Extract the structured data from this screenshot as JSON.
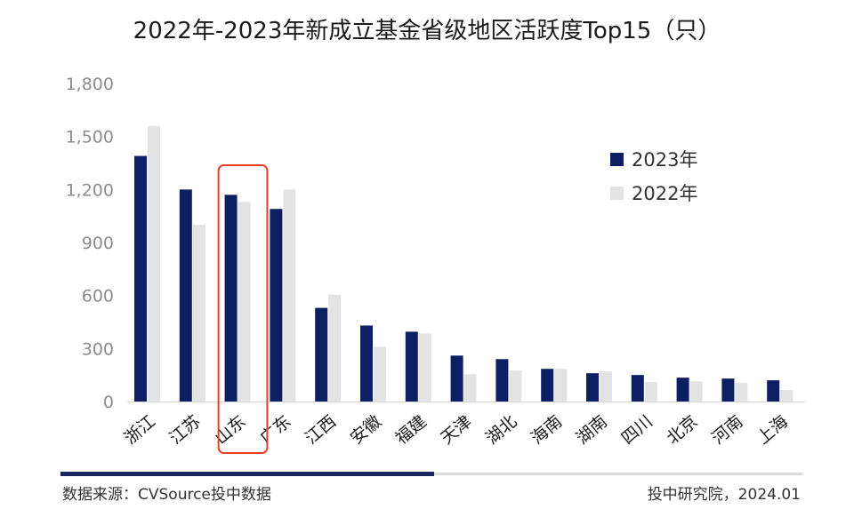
{
  "chart_data": {
    "type": "bar",
    "title": "2022年-2023年新成立基金省级地区活跃度Top15（只）",
    "categories": [
      "浙江",
      "江苏",
      "山东",
      "广东",
      "江西",
      "安徽",
      "福建",
      "天津",
      "湖北",
      "海南",
      "湖南",
      "四川",
      "北京",
      "河南",
      "上海"
    ],
    "series": [
      {
        "name": "2023年",
        "color": "#0d1f63",
        "values": [
          1390,
          1200,
          1170,
          1090,
          530,
          430,
          395,
          260,
          240,
          185,
          160,
          150,
          135,
          130,
          120
        ]
      },
      {
        "name": "2022年",
        "color": "#e3e3e3",
        "values": [
          1560,
          1000,
          1130,
          1200,
          605,
          310,
          385,
          155,
          175,
          185,
          170,
          110,
          115,
          105,
          65
        ]
      }
    ],
    "ylim": [
      0,
      1800
    ],
    "yticks": [
      "0",
      "300",
      "600",
      "900",
      "1,200",
      "1,500",
      "1,800"
    ],
    "grid": false,
    "legend": "right",
    "highlight": {
      "category": "山东",
      "color": "#e8402a"
    }
  },
  "footer": {
    "source": "数据来源：CVSource投中数据",
    "credit": "投中研究院，2024.01"
  }
}
